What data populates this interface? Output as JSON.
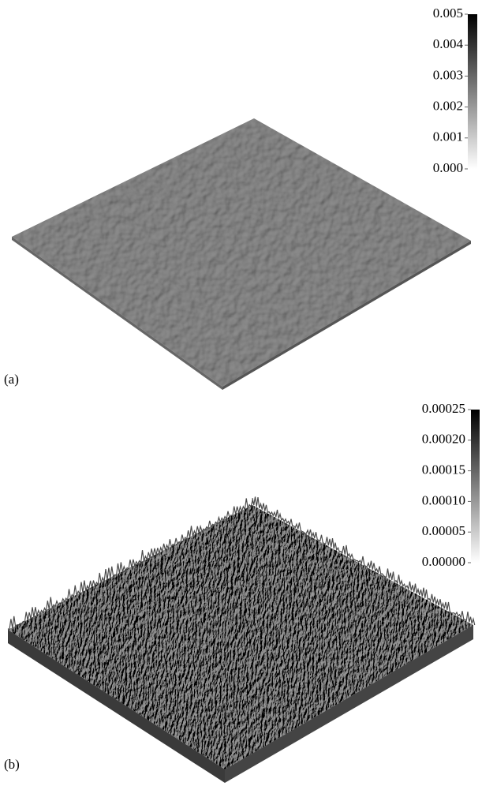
{
  "panels": [
    {
      "label": "(a)",
      "colorbar": {
        "lim": [
          0,
          0.005
        ],
        "ticks": [
          {
            "value": 0.005,
            "label": "0.005"
          },
          {
            "value": 0.004,
            "label": "0.004"
          },
          {
            "value": 0.003,
            "label": "0.003"
          },
          {
            "value": 0.002,
            "label": "0.002"
          },
          {
            "value": 0.001,
            "label": "0.001"
          },
          {
            "value": 0,
            "label": "0.000"
          }
        ]
      }
    },
    {
      "label": "(b)",
      "colorbar": {
        "lim": [
          0,
          0.00025
        ],
        "ticks": [
          {
            "value": 0.00025,
            "label": "0.00025"
          },
          {
            "value": 0.0002,
            "label": "0.00020"
          },
          {
            "value": 0.00015,
            "label": "0.00015"
          },
          {
            "value": 0.0001,
            "label": "0.00010"
          },
          {
            "value": 5e-05,
            "label": "0.00005"
          },
          {
            "value": 0,
            "label": "0.00000"
          }
        ]
      }
    }
  ]
}
